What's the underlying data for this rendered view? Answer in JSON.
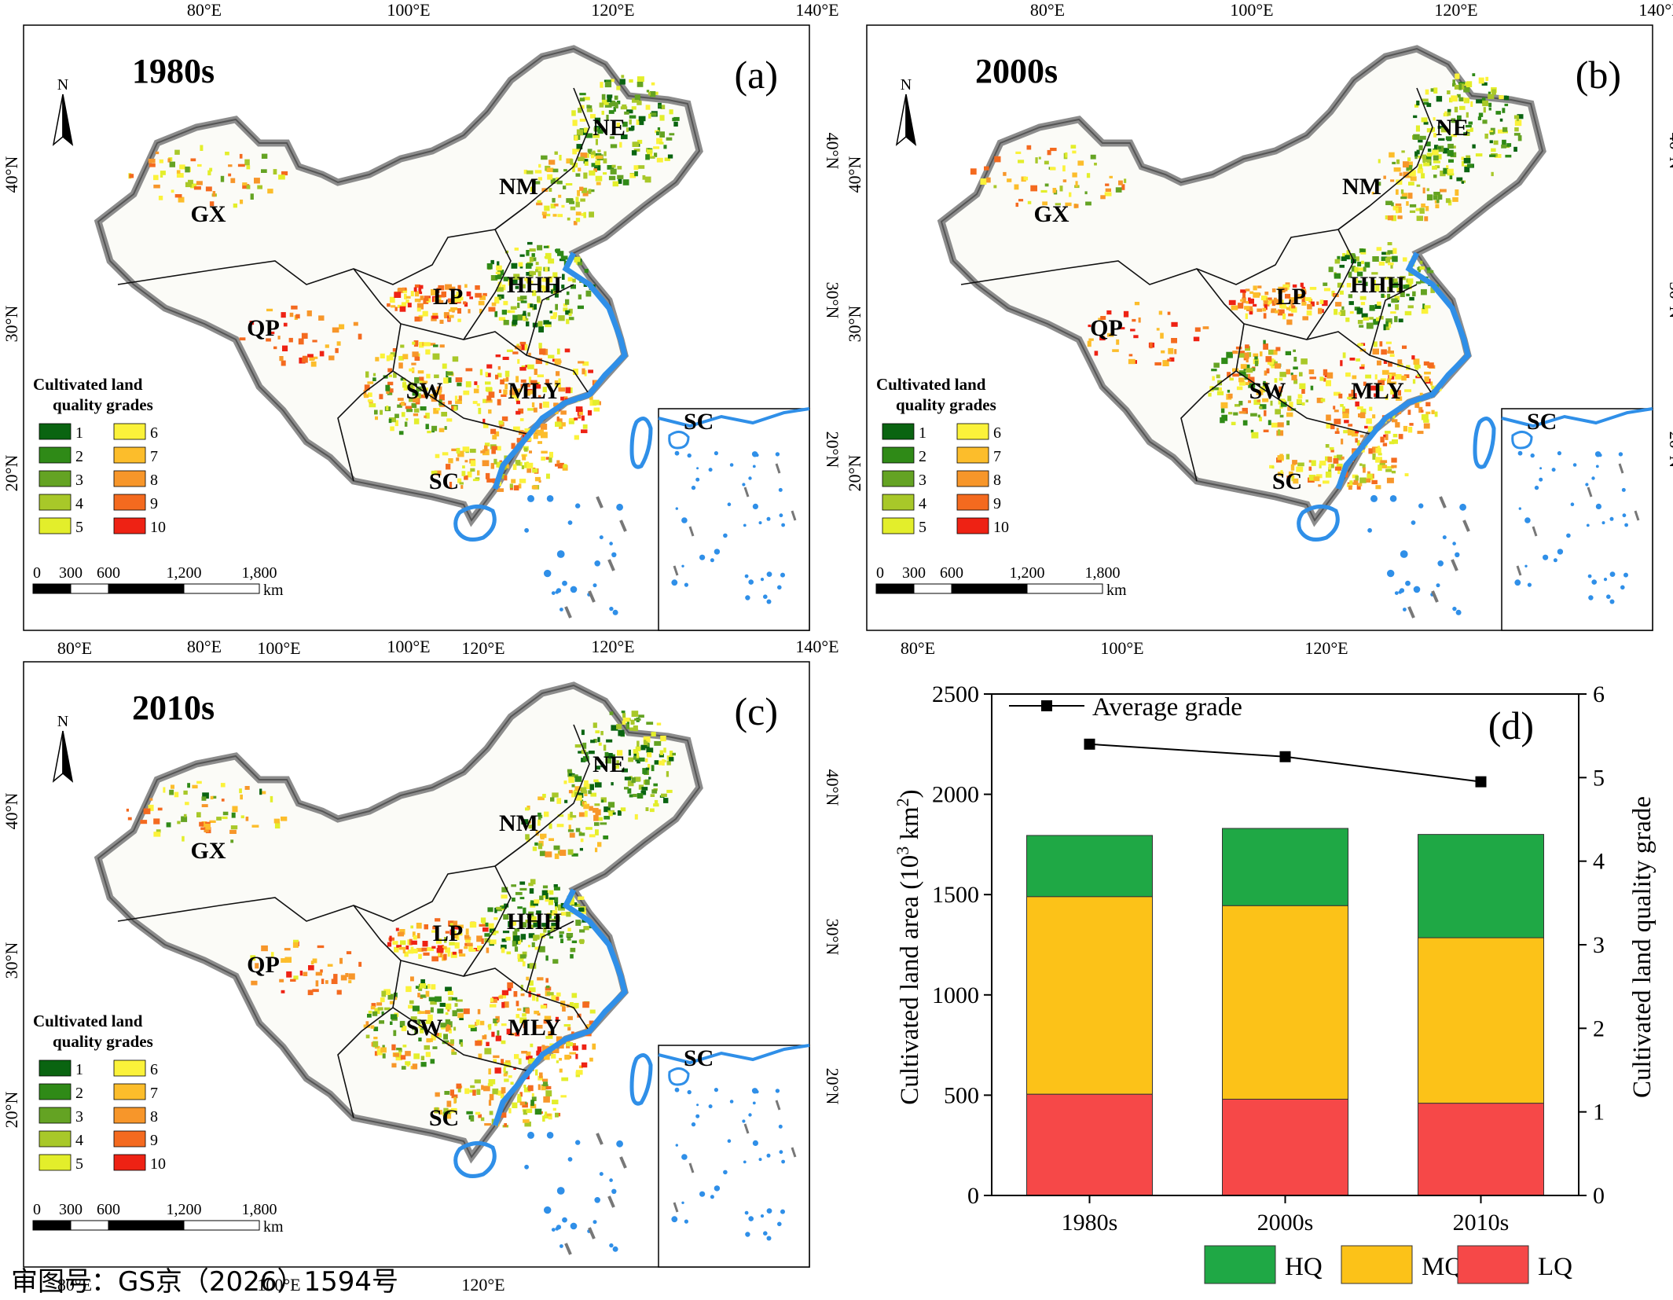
{
  "maps": [
    {
      "title": "1980s",
      "tag": "(a)"
    },
    {
      "title": "2000s",
      "tag": "(b)"
    },
    {
      "title": "2010s",
      "tag": "(c)"
    }
  ],
  "regions": [
    "NE",
    "NM",
    "GX",
    "HHH",
    "LP",
    "QP",
    "SW",
    "MLY",
    "SC"
  ],
  "inset_label": "SC",
  "north_label": "N",
  "lon_labels": [
    "80°E",
    "100°E",
    "120°E",
    "140°E"
  ],
  "lat_labels": [
    "40°N",
    "30°N",
    "20°N"
  ],
  "legend": {
    "title_line1": "Cultivated land",
    "title_line2": "quality grades",
    "grades": [
      {
        "label": "1",
        "color": "#0a6411"
      },
      {
        "label": "2",
        "color": "#2f8a17"
      },
      {
        "label": "3",
        "color": "#64a323"
      },
      {
        "label": "4",
        "color": "#a8c829"
      },
      {
        "label": "5",
        "color": "#e3ee2b"
      },
      {
        "label": "6",
        "color": "#fbf23a"
      },
      {
        "label": "7",
        "color": "#fcbd2b"
      },
      {
        "label": "8",
        "color": "#f7962a"
      },
      {
        "label": "9",
        "color": "#f46a1f"
      },
      {
        "label": "10",
        "color": "#ee2214"
      }
    ]
  },
  "scale_bar": {
    "labels": [
      "0",
      "300",
      "600",
      "1,200",
      "1,800"
    ],
    "unit": "km"
  },
  "approval_number": "审图号：GS京（2026）1594号",
  "chart_data": {
    "type": "bar",
    "tag": "(d)",
    "categories": [
      "1980s",
      "2000s",
      "2010s"
    ],
    "stacked": true,
    "series": [
      {
        "name": "LQ",
        "color": "#f64848",
        "values": [
          505,
          480,
          460
        ]
      },
      {
        "name": "MQ",
        "color": "#fcc218",
        "values": [
          985,
          965,
          825
        ]
      },
      {
        "name": "HQ",
        "color": "#1fa845",
        "values": [
          305,
          385,
          515
        ]
      }
    ],
    "line_series": {
      "name": "Average grade",
      "axis": "right",
      "values": [
        5.4,
        5.25,
        4.95
      ]
    },
    "ylabel_left_main": "Cultivated land area (10",
    "ylabel_left_sup": "3",
    "ylabel_left_mid": " km",
    "ylabel_left_sup2": "2",
    "ylabel_left_end": ")",
    "ylabel_right": "Cultivated land quality grade",
    "ylim_left": [
      0,
      2500
    ],
    "yticks_left": [
      0,
      500,
      1000,
      1500,
      2000,
      2500
    ],
    "ylim_right": [
      0,
      6
    ],
    "yticks_right": [
      0,
      1,
      2,
      3,
      4,
      5,
      6
    ],
    "legend_position": "bottom"
  }
}
